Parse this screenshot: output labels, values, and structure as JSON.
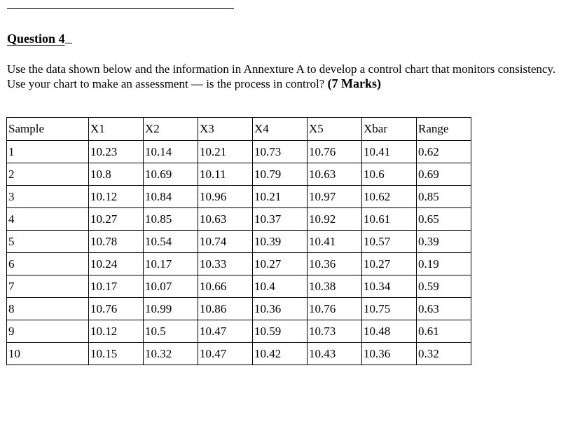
{
  "question": {
    "heading": "Question 4",
    "instruction_text": "Use the data shown below and the information in Annexture A to develop a control chart that monitors consistency. Use your chart to make an assessment — is the process in control?",
    "marks": "(7 Marks)"
  },
  "table": {
    "headers": [
      "Sample",
      "X1",
      "X2",
      "X3",
      "X4",
      "X5",
      "Xbar",
      "Range"
    ],
    "rows": [
      [
        "1",
        "10.23",
        "10.14",
        "10.21",
        "10.73",
        "10.76",
        "10.41",
        "0.62"
      ],
      [
        "2",
        "10.8",
        "10.69",
        "10.11",
        "10.79",
        "10.63",
        "10.6",
        "0.69"
      ],
      [
        "3",
        "10.12",
        "10.84",
        "10.96",
        "10.21",
        "10.97",
        "10.62",
        "0.85"
      ],
      [
        "4",
        "10.27",
        "10.85",
        "10.63",
        "10.37",
        "10.92",
        "10.61",
        "0.65"
      ],
      [
        "5",
        "10.78",
        "10.54",
        "10.74",
        "10.39",
        "10.41",
        "10.57",
        "0.39"
      ],
      [
        "6",
        "10.24",
        "10.17",
        "10.33",
        "10.27",
        "10.36",
        "10.27",
        "0.19"
      ],
      [
        "7",
        "10.17",
        "10.07",
        "10.66",
        "10.4",
        "10.38",
        "10.34",
        "0.59"
      ],
      [
        "8",
        "10.76",
        "10.99",
        "10.86",
        "10.36",
        "10.76",
        "10.75",
        "0.63"
      ],
      [
        "9",
        "10.12",
        "10.5",
        "10.47",
        "10.59",
        "10.73",
        "10.48",
        "0.61"
      ],
      [
        "10",
        "10.15",
        "10.32",
        "10.47",
        "10.42",
        "10.43",
        "10.36",
        "0.32"
      ]
    ]
  }
}
